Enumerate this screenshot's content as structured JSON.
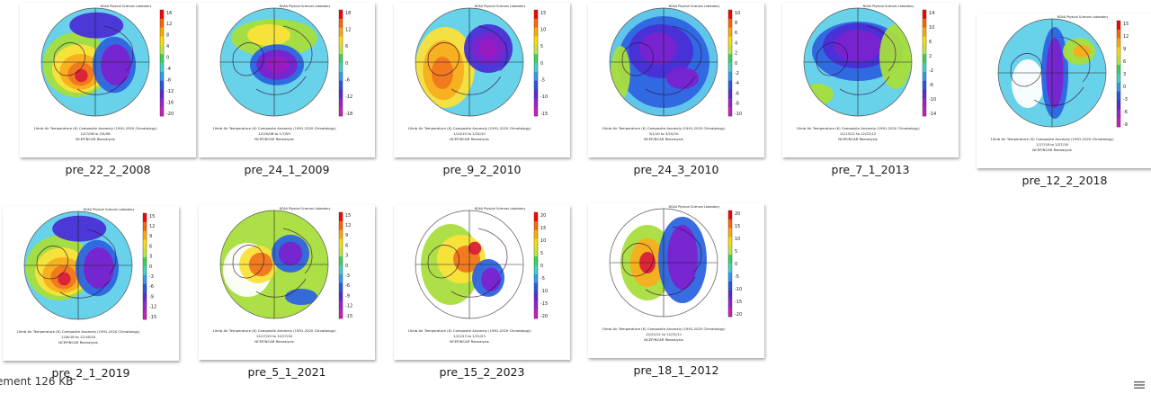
{
  "status_bar": {
    "text": "ement  126 KB"
  },
  "thumbnail_text": {
    "lab": "NOAA Physical Sciences Laboratory",
    "caption": "10mb Air Temperature (K) Composite Anomaly (1991-2020 Climatology)",
    "source": "NCEP/NCAR Reanalysis"
  },
  "files": [
    {
      "name": "pre_22_2_2008",
      "dates": "1/27/08 to 2/5/08",
      "scale": [
        "16",
        "12",
        "8",
        "4",
        "0",
        "-4",
        "-8",
        "-12",
        "-16",
        "-20"
      ],
      "pattern": "warm-sw"
    },
    {
      "name": "pre_24_1_2009",
      "dates": "12/20/08 to 1/7/09",
      "scale": [
        "18",
        "12",
        "6",
        "0",
        "-6",
        "-12",
        "-18"
      ],
      "pattern": "cold-center"
    },
    {
      "name": "pre_9_2_2010",
      "dates": "1/14/10 to 1/24/10",
      "scale": [
        "15",
        "10",
        "5",
        "0",
        "-5",
        "-10",
        "-15"
      ],
      "pattern": "warm-west"
    },
    {
      "name": "pre_24_3_2010",
      "dates": "3/1/10 to 3/10/10",
      "scale": [
        "10",
        "8",
        "6",
        "4",
        "2",
        "0",
        "-2",
        "-4",
        "-6",
        "-8",
        "-10"
      ],
      "pattern": "cold-wide"
    },
    {
      "name": "pre_7_1_2013",
      "dates": "12/13/12 to 12/22/12",
      "scale": [
        "14",
        "10",
        "6",
        "2",
        "-2",
        "-6",
        "-10",
        "-14"
      ],
      "pattern": "cold-top"
    },
    {
      "name": "pre_12_2_2018",
      "dates": "1/17/18 to 1/27/18",
      "scale": [
        "15",
        "12",
        "9",
        "6",
        "3",
        "0",
        "-3",
        "-6",
        "-9"
      ],
      "pattern": "cold-band"
    },
    {
      "name": "pre_2_1_2019",
      "dates": "12/8/18 to 12/18/18",
      "scale": [
        "15",
        "12",
        "9",
        "6",
        "3",
        "0",
        "-3",
        "-6",
        "-9",
        "-12",
        "-15"
      ],
      "pattern": "warm-sw"
    },
    {
      "name": "pre_5_1_2021",
      "dates": "12/17/20 to 12/27/20",
      "scale": [
        "15",
        "12",
        "9",
        "6",
        "3",
        "0",
        "-3",
        "-6",
        "-9",
        "-12",
        "-15"
      ],
      "pattern": "warm-ring"
    },
    {
      "name": "pre_15_2_2023",
      "dates": "1/21/23 to 1/31/23",
      "scale": [
        "20",
        "15",
        "10",
        "5",
        "0",
        "-5",
        "-10",
        "-15",
        "-20"
      ],
      "pattern": "warm-left"
    },
    {
      "name": "pre_18_1_2012",
      "dates": "12/22/11 to 12/31/11",
      "scale": [
        "20",
        "15",
        "10",
        "5",
        "0",
        "-5",
        "-10",
        "-15",
        "-20"
      ],
      "pattern": "cold-right"
    }
  ]
}
